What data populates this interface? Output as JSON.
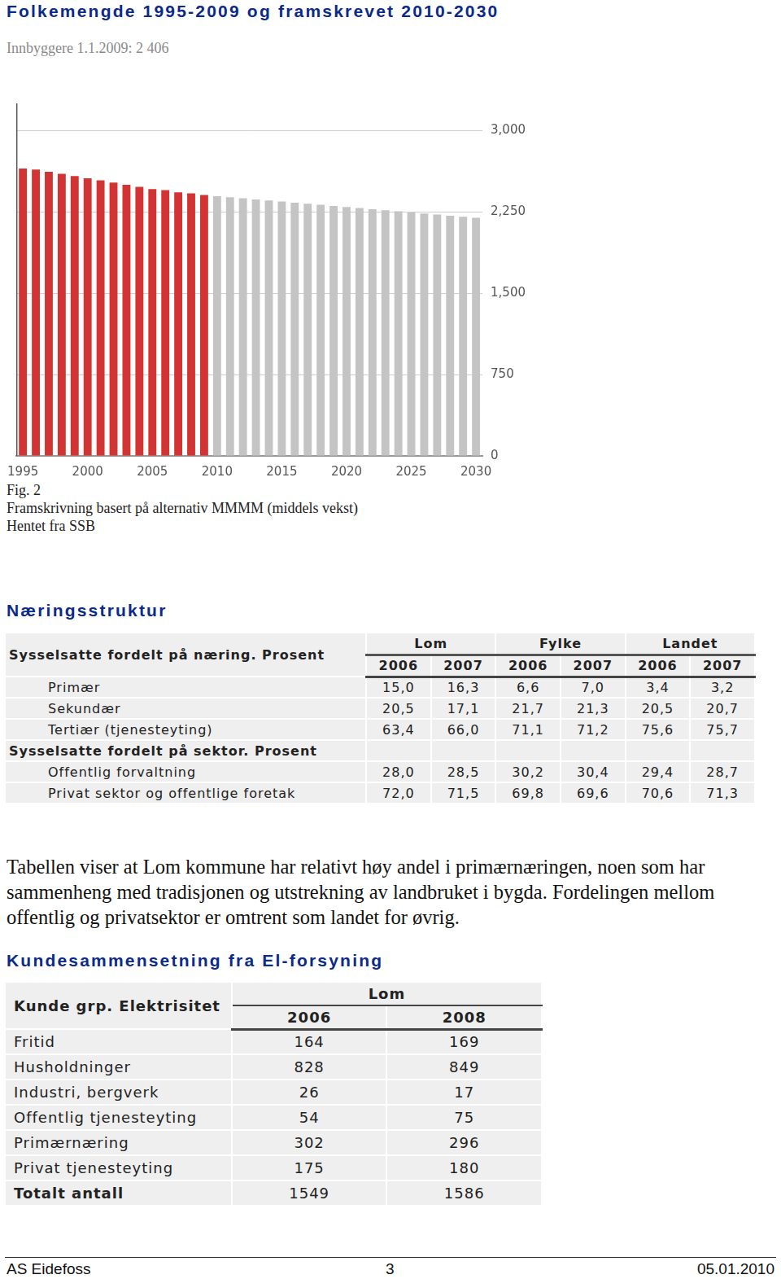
{
  "header": {
    "title": "Folkemengde 1995-2009 og framskrevet 2010-2030",
    "subtitle": "Innbyggere 1.1.2009: 2 406"
  },
  "chart_data": {
    "type": "bar",
    "categories": [
      "1995",
      null,
      null,
      null,
      null,
      "2000",
      null,
      null,
      null,
      null,
      "2005",
      null,
      null,
      null,
      null,
      "2010",
      null,
      null,
      null,
      null,
      "2015",
      null,
      null,
      null,
      null,
      "2020",
      null,
      null,
      null,
      null,
      "2025",
      null,
      null,
      null,
      null,
      "2030"
    ],
    "values": [
      2650,
      2640,
      2620,
      2600,
      2580,
      2560,
      2540,
      2520,
      2500,
      2480,
      2460,
      2450,
      2430,
      2420,
      2406,
      2395,
      2385,
      2375,
      2365,
      2355,
      2345,
      2335,
      2325,
      2315,
      2305,
      2295,
      2285,
      2275,
      2265,
      2255,
      2245,
      2235,
      2225,
      2215,
      2205,
      2195
    ],
    "colors": [
      "#d23434",
      "#d23434",
      "#d23434",
      "#d23434",
      "#d23434",
      "#d23434",
      "#d23434",
      "#d23434",
      "#d23434",
      "#d23434",
      "#d23434",
      "#d23434",
      "#d23434",
      "#d23434",
      "#d23434",
      "#c4c4c4",
      "#c4c4c4",
      "#c4c4c4",
      "#c4c4c4",
      "#c4c4c4",
      "#c4c4c4",
      "#c4c4c4",
      "#c4c4c4",
      "#c4c4c4",
      "#c4c4c4",
      "#c4c4c4",
      "#c4c4c4",
      "#c4c4c4",
      "#c4c4c4",
      "#c4c4c4",
      "#c4c4c4",
      "#c4c4c4",
      "#c4c4c4",
      "#c4c4c4",
      "#c4c4c4",
      "#c4c4c4"
    ],
    "ylim": [
      0,
      3250
    ],
    "yticks": [
      0,
      750,
      1500,
      2250,
      3000
    ],
    "grid": true
  },
  "caption": [
    "Fig. 2",
    "Framskrivning basert på alternativ MMMM (middels vekst)",
    "Hentet fra SSB"
  ],
  "section1": {
    "heading": "Næringsstruktur",
    "table": {
      "groups": [
        "Lom",
        "Fylke",
        "Landet"
      ],
      "years": [
        "2006",
        "2007"
      ],
      "sections": [
        {
          "heading": "Sysselsatte fordelt på næring. Prosent",
          "rows": [
            {
              "label": "Primær",
              "values": [
                "15,0",
                "16,3",
                "6,6",
                "7,0",
                "3,4",
                "3,2"
              ]
            },
            {
              "label": "Sekundær",
              "values": [
                "20,5",
                "17,1",
                "21,7",
                "21,3",
                "20,5",
                "20,7"
              ]
            },
            {
              "label": "Tertiær (tjenesteyting)",
              "values": [
                "63,4",
                "66,0",
                "71,1",
                "71,2",
                "75,6",
                "75,7"
              ]
            }
          ]
        },
        {
          "heading": "Sysselsatte fordelt på sektor. Prosent",
          "rows": [
            {
              "label": "Offentlig forvaltning",
              "values": [
                "28,0",
                "28,5",
                "30,2",
                "30,4",
                "29,4",
                "28,7"
              ]
            },
            {
              "label": "Privat sektor og offentlige foretak",
              "values": [
                "72,0",
                "71,5",
                "69,8",
                "69,6",
                "70,6",
                "71,3"
              ]
            }
          ]
        }
      ]
    }
  },
  "paragraph": "Tabellen viser at Lom kommune har relativt høy andel i primærnæringen, noen som har sammenheng med tradisjonen og utstrekning av landbruket i bygda. Fordelingen mellom offentlig og privatsektor er omtrent som landet for øvrig.",
  "section2": {
    "heading": "Kundesammensetning fra El-forsyning",
    "table": {
      "corner": "Kunde grp. Elektrisitet",
      "group": "Lom",
      "years": [
        "2006",
        "2008"
      ],
      "rows": [
        {
          "label": "Fritid",
          "values": [
            "164",
            "169"
          ]
        },
        {
          "label": "Husholdninger",
          "values": [
            "828",
            "849"
          ]
        },
        {
          "label": "Industri, bergverk",
          "values": [
            "26",
            "17"
          ]
        },
        {
          "label": "Offentlig tjenesteyting",
          "values": [
            "54",
            "75"
          ]
        },
        {
          "label": "Primærnæring",
          "values": [
            "302",
            "296"
          ]
        },
        {
          "label": "Privat tjenesteyting",
          "values": [
            "175",
            "180"
          ]
        }
      ],
      "total": {
        "label": "Totalt antall",
        "values": [
          "1549",
          "1586"
        ]
      }
    }
  },
  "footer": {
    "left": "AS Eidefoss",
    "center": "3",
    "right": "05.01.2010"
  }
}
